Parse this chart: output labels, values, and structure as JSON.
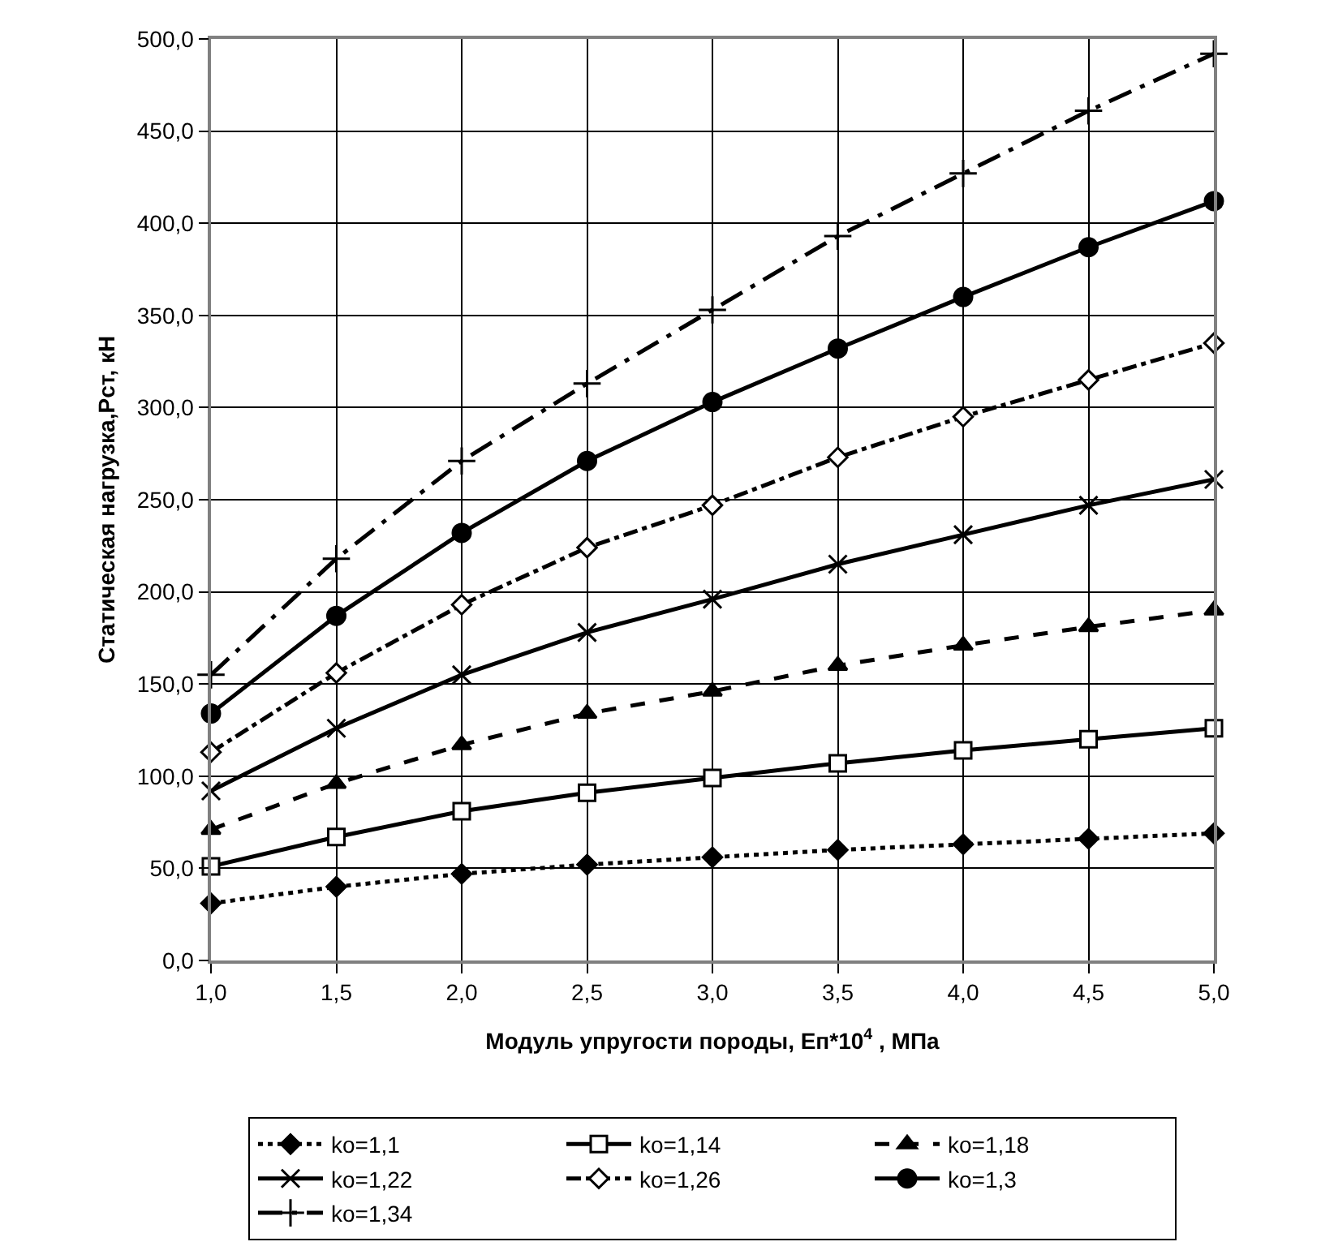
{
  "chart_data": {
    "type": "line",
    "xlabel": "Модуль упругости породы, Еп*10$^{4}$ , МПа",
    "ylabel": "Статическая нагрузка,Рст, кН",
    "x": [
      1.0,
      1.5,
      2.0,
      2.5,
      3.0,
      3.5,
      4.0,
      4.5,
      5.0
    ],
    "xlim": [
      1.0,
      5.0
    ],
    "xticks": [
      {
        "value": 1.0,
        "label": "1,0"
      },
      {
        "value": 1.5,
        "label": "1,5"
      },
      {
        "value": 2.0,
        "label": "2,0"
      },
      {
        "value": 2.5,
        "label": "2,5"
      },
      {
        "value": 3.0,
        "label": "3,0"
      },
      {
        "value": 3.5,
        "label": "3,5"
      },
      {
        "value": 4.0,
        "label": "4,0"
      },
      {
        "value": 4.5,
        "label": "4,5"
      },
      {
        "value": 5.0,
        "label": "5,0"
      }
    ],
    "ylim": [
      0,
      500
    ],
    "yticks": [
      {
        "value": 0,
        "label": "0,0"
      },
      {
        "value": 50,
        "label": "50,0"
      },
      {
        "value": 100,
        "label": "100,0"
      },
      {
        "value": 150,
        "label": "150,0"
      },
      {
        "value": 200,
        "label": "200,0"
      },
      {
        "value": 250,
        "label": "250,0"
      },
      {
        "value": 300,
        "label": "300,0"
      },
      {
        "value": 350,
        "label": "350,0"
      },
      {
        "value": 400,
        "label": "400,0"
      },
      {
        "value": 450,
        "label": "450,0"
      },
      {
        "value": 500,
        "label": "500,0"
      }
    ],
    "grid": true,
    "legend": "bottom",
    "series": [
      {
        "name": "ko=1,1",
        "color": "#000000",
        "marker": "diamond",
        "line_style": "dotted",
        "values": [
          31,
          40,
          47,
          52,
          56,
          60,
          63,
          66,
          69
        ]
      },
      {
        "name": "ko=1,14",
        "color": "#000000",
        "marker": "square-open",
        "line_style": "solid",
        "values": [
          51,
          67,
          81,
          91,
          99,
          107,
          114,
          120,
          126
        ]
      },
      {
        "name": "ko=1,18",
        "color": "#000000",
        "marker": "triangle",
        "line_style": "dashed",
        "values": [
          71,
          96,
          117,
          134,
          146,
          160,
          171,
          181,
          190
        ]
      },
      {
        "name": "ko=1,22",
        "color": "#000000",
        "marker": "cross",
        "line_style": "solid",
        "values": [
          92,
          126,
          155,
          178,
          196,
          215,
          231,
          247,
          261
        ]
      },
      {
        "name": "ko=1,26",
        "color": "#000000",
        "marker": "diamond-open",
        "line_style": "dashdot",
        "values": [
          113,
          156,
          193,
          224,
          247,
          273,
          295,
          315,
          335
        ]
      },
      {
        "name": "ko=1,3",
        "color": "#000000",
        "marker": "circle",
        "line_style": "solid",
        "values": [
          134,
          187,
          232,
          271,
          303,
          332,
          360,
          387,
          412
        ]
      },
      {
        "name": "ko=1,34",
        "color": "#000000",
        "marker": "plus",
        "line_style": "longdashdot",
        "values": [
          155,
          218,
          271,
          313,
          353,
          393,
          427,
          461,
          492
        ]
      }
    ]
  }
}
